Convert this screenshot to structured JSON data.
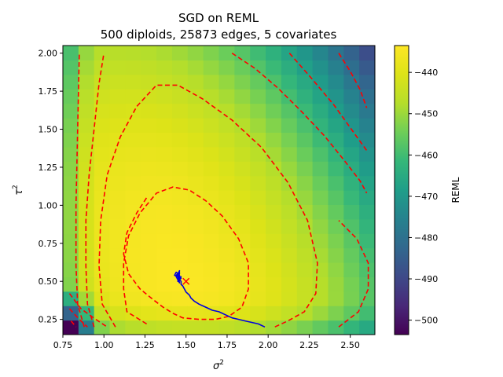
{
  "chart_data": {
    "type": "heatmap",
    "title_line1": "SGD on REML",
    "title_line2": "500 diploids, 25873 edges, 5 covariates",
    "xlabel": "σ",
    "xlabel_sup": "2",
    "ylabel": "τ",
    "ylabel_sup": "2",
    "xlim": [
      0.75,
      2.65
    ],
    "ylim": [
      0.15,
      2.05
    ],
    "x_ticks": [
      0.75,
      1.0,
      1.25,
      1.5,
      1.75,
      2.0,
      2.25,
      2.5
    ],
    "x_tick_labels": [
      "0.75",
      "1.00",
      "1.25",
      "1.50",
      "1.75",
      "2.00",
      "2.25",
      "2.50"
    ],
    "y_ticks": [
      0.25,
      0.5,
      0.75,
      1.0,
      1.25,
      1.5,
      1.75,
      2.0
    ],
    "y_tick_labels": [
      "0.25",
      "0.50",
      "0.75",
      "1.00",
      "1.25",
      "1.50",
      "1.75",
      "2.00"
    ],
    "grid": {
      "x_min": 0.75,
      "x_max": 2.65,
      "y_min": 0.15,
      "y_max": 2.05,
      "cells": 20
    },
    "optimum": {
      "sigma2": 1.45,
      "tau2": 0.52
    },
    "marker_start": {
      "sigma2": 1.5,
      "tau2": 0.5,
      "symbol": "x",
      "color": "#ff0000"
    },
    "colorbar": {
      "label": "REML",
      "min": -503.5,
      "max": -433.5,
      "ticks": [
        -440,
        -450,
        -460,
        -470,
        -480,
        -490,
        -500
      ],
      "tick_labels": [
        "−440",
        "−450",
        "−460",
        "−470",
        "−480",
        "−490",
        "−500"
      ]
    },
    "contours": {
      "color": "#ff0000",
      "style": "dashed",
      "series": [
        {
          "name": "contour-1",
          "x": [
            1.26,
            1.14,
            1.12,
            1.12,
            1.15,
            1.22,
            1.32,
            1.42,
            1.52,
            1.62,
            1.72,
            1.82,
            1.88,
            1.88,
            1.84,
            1.76,
            1.68,
            1.58,
            1.48,
            1.42,
            1.36,
            1.3,
            1.22,
            1.15,
            1.12,
            1.14,
            1.2,
            1.26
          ],
          "y": [
            0.22,
            0.3,
            0.45,
            0.62,
            0.8,
            0.95,
            1.08,
            1.12,
            1.1,
            1.03,
            0.93,
            0.78,
            0.62,
            0.45,
            0.33,
            0.27,
            0.25,
            0.25,
            0.26,
            0.29,
            0.33,
            0.38,
            0.45,
            0.55,
            0.68,
            0.82,
            0.95,
            1.05
          ]
        },
        {
          "name": "contour-2",
          "x": [
            1.07,
            0.99,
            0.97,
            0.98,
            1.02,
            1.1,
            1.2,
            1.32,
            1.45,
            1.6,
            1.78,
            1.96,
            2.12,
            2.24,
            2.3,
            2.29,
            2.22,
            2.12,
            2.04
          ],
          "y": [
            0.2,
            0.35,
            0.6,
            0.9,
            1.2,
            1.45,
            1.65,
            1.79,
            1.79,
            1.7,
            1.56,
            1.38,
            1.15,
            0.9,
            0.62,
            0.42,
            0.3,
            0.24,
            0.2
          ]
        },
        {
          "name": "contour-3",
          "x": [
            0.94,
            0.9,
            0.89,
            0.89,
            0.91,
            0.94,
            0.97,
            1.0
          ],
          "y": [
            0.2,
            0.35,
            0.6,
            0.9,
            1.2,
            1.5,
            1.8,
            2.0
          ]
        },
        {
          "name": "contour-4",
          "x": [
            0.88,
            0.84,
            0.83,
            0.83,
            0.84,
            0.85
          ],
          "y": [
            0.2,
            0.35,
            0.6,
            1.0,
            1.5,
            2.0
          ]
        },
        {
          "name": "contour-5",
          "x": [
            1.78,
            1.92,
            2.06,
            2.2,
            2.34,
            2.46,
            2.56,
            2.6
          ],
          "y": [
            2.0,
            1.9,
            1.77,
            1.62,
            1.46,
            1.3,
            1.16,
            1.08
          ]
        },
        {
          "name": "contour-6",
          "x": [
            2.43,
            2.55,
            2.61,
            2.61,
            2.54,
            2.43
          ],
          "y": [
            0.2,
            0.3,
            0.45,
            0.62,
            0.78,
            0.9
          ]
        },
        {
          "name": "contour-7",
          "x": [
            2.13,
            2.26,
            2.4,
            2.52,
            2.6
          ],
          "y": [
            2.0,
            1.84,
            1.66,
            1.48,
            1.36
          ]
        },
        {
          "name": "contour-8",
          "x": [
            2.43,
            2.5,
            2.56,
            2.6
          ],
          "y": [
            2.0,
            1.88,
            1.76,
            1.64
          ]
        },
        {
          "name": "contour-9",
          "x": [
            0.79,
            0.86,
            0.95,
            1.02
          ],
          "y": [
            0.42,
            0.32,
            0.25,
            0.2
          ]
        },
        {
          "name": "contour-10",
          "x": [
            0.79,
            0.85,
            0.9
          ],
          "y": [
            0.32,
            0.25,
            0.2
          ]
        },
        {
          "name": "contour-11",
          "x": [
            0.8,
            0.83
          ],
          "y": [
            0.24,
            0.2
          ]
        }
      ]
    },
    "sgd_path": {
      "color": "#0000dd",
      "x": [
        1.98,
        1.94,
        1.9,
        1.86,
        1.82,
        1.78,
        1.74,
        1.7,
        1.66,
        1.62,
        1.58,
        1.55,
        1.53,
        1.52,
        1.5,
        1.49,
        1.48,
        1.47,
        1.47,
        1.46,
        1.47,
        1.45,
        1.46,
        1.44,
        1.46,
        1.45,
        1.47,
        1.45,
        1.46,
        1.44,
        1.46,
        1.45,
        1.47,
        1.45,
        1.46,
        1.44,
        1.43,
        1.45,
        1.46
      ],
      "y": [
        0.2,
        0.22,
        0.23,
        0.24,
        0.25,
        0.26,
        0.28,
        0.3,
        0.31,
        0.33,
        0.35,
        0.37,
        0.39,
        0.41,
        0.43,
        0.45,
        0.47,
        0.48,
        0.5,
        0.51,
        0.53,
        0.52,
        0.55,
        0.54,
        0.56,
        0.5,
        0.53,
        0.51,
        0.57,
        0.53,
        0.49,
        0.55,
        0.52,
        0.5,
        0.54,
        0.56,
        0.54,
        0.53,
        0.52
      ]
    }
  }
}
